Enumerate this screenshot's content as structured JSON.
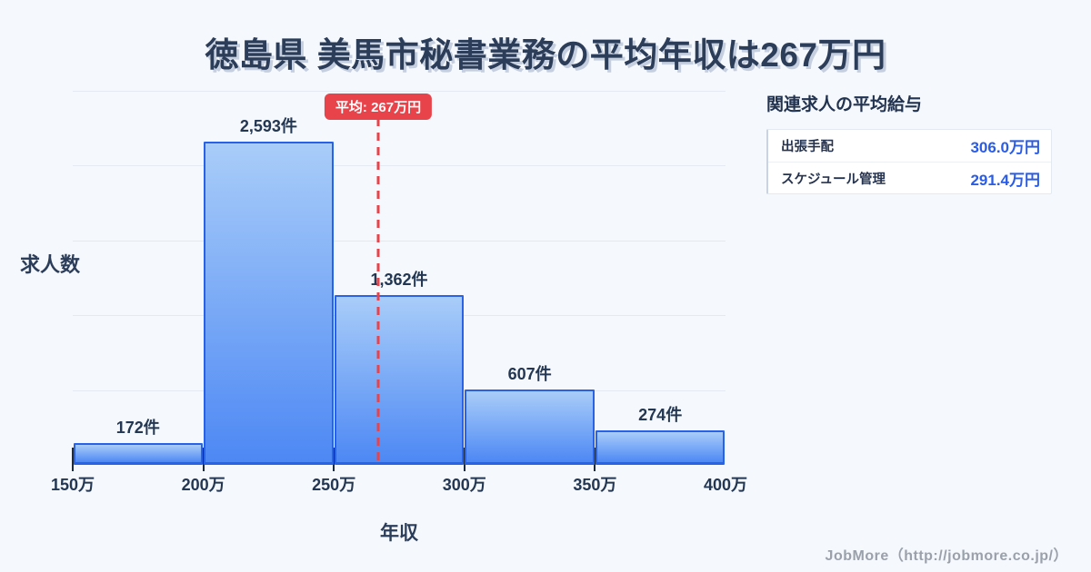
{
  "title": "徳島県 美馬市秘書業務の平均年収は267万円",
  "footer": {
    "credit": "JobMore（http://jobmore.co.jp/）"
  },
  "chart_data": {
    "type": "bar",
    "title": "徳島県 美馬市秘書業務の平均年収は267万円",
    "xlabel": "年収",
    "ylabel": "求人数",
    "bin_edges": [
      150,
      200,
      250,
      300,
      350,
      400
    ],
    "x_tick_labels": [
      "150万",
      "200万",
      "250万",
      "300万",
      "350万",
      "400万"
    ],
    "values": [
      172,
      2593,
      1362,
      607,
      274
    ],
    "bar_labels": [
      "172件",
      "2,593件",
      "1,362件",
      "607件",
      "274件"
    ],
    "ylim": [
      0,
      3000
    ],
    "xlim": [
      150,
      400
    ],
    "grid": true,
    "gridline_divisions": 5,
    "average": 267,
    "average_label": "平均: 267万円",
    "legend": "none"
  },
  "side_panel": {
    "heading": "関連求人の平均給与",
    "rows": [
      {
        "label": "出張手配",
        "value": "306.0万円"
      },
      {
        "label": "スケジュール管理",
        "value": "291.4万円"
      }
    ]
  },
  "colors": {
    "background": "#f5f8fc",
    "title_navy": "#2c3d59",
    "bar_gradient_top": "#a9cdf9",
    "bar_gradient_bottom": "#4d88f4",
    "bar_border": "#2862e7",
    "average_red": "#e8434a",
    "value_blue": "#2a5ce5",
    "footer_gray": "#9aa1ab"
  }
}
